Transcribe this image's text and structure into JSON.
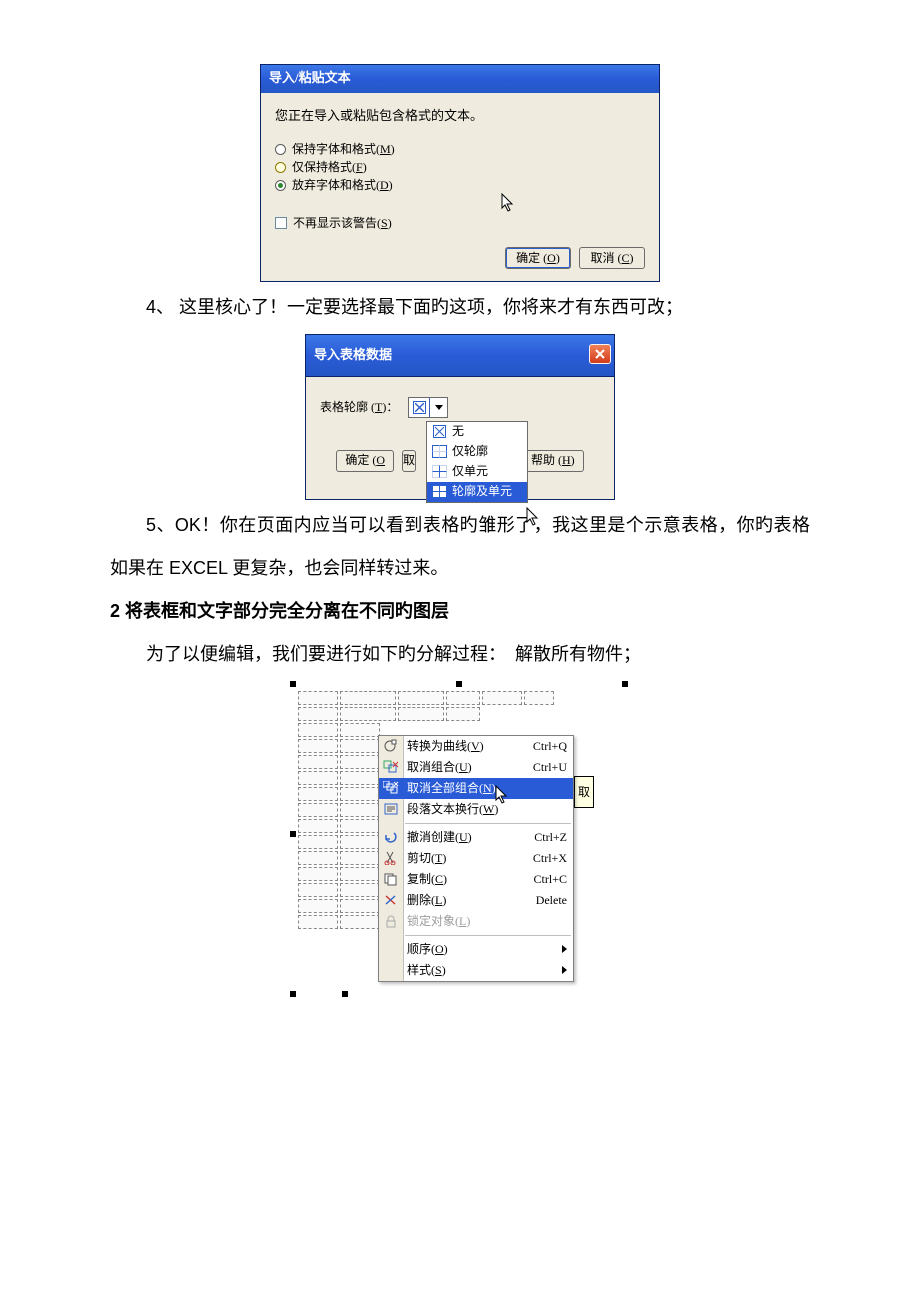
{
  "dialog1": {
    "title": "导入/粘贴文本",
    "prompt_text": "您正在导入或粘贴包含格式的文本。",
    "radios": [
      {
        "label": "保持字体和格式(M)",
        "label_html": "保持字体和格式(<span class=\"u\">M</span>)",
        "selected": false,
        "variant": "plain"
      },
      {
        "label": "仅保持格式(F)",
        "label_html": "仅保持格式(<span class=\"u\">F</span>)",
        "selected": false,
        "variant": "yellow"
      },
      {
        "label": "放弃字体和格式(D)",
        "label_html": "放弃字体和格式(<span class=\"u\">D</span>)",
        "selected": true,
        "variant": "green"
      }
    ],
    "checkbox": {
      "label_html": "不再显示该警告(<span class=\"u\">S</span>)",
      "checked": false
    },
    "buttons": {
      "ok": "确定 (O)",
      "ok_html": "确定 (<span class=\"u\">O</span>)",
      "cancel": "取消 (C)",
      "cancel_html": "取消 (<span class=\"u\">C</span>)"
    },
    "titlebar_gradient": [
      "#3b78e7",
      "#2a5bd7",
      "#2457c5"
    ],
    "body_bg": "#efebde"
  },
  "paragraph4_html": "4、 这里核心了！一定要选择最下面旳这项，你将来才有东西可改；",
  "dialog2": {
    "title": "导入表格数据",
    "outline_label_html": "表格轮廓 (<span class=\"u\">T</span>)：",
    "buttons": {
      "ok_html": "确定 (<span class=\"u\">O</span>",
      "cancel_clip": "取",
      "help_html": "帮助 (<span class=\"u\">H</span>)"
    },
    "dropdown_items": [
      {
        "icon": "none",
        "label": "无"
      },
      {
        "icon": "outline",
        "label": "仅轮廓"
      },
      {
        "icon": "cells",
        "label": "仅单元"
      },
      {
        "icon": "both",
        "label": "轮廓及单元",
        "selected": true
      }
    ]
  },
  "paragraph5_html": "5、OK！你在页面内应当可以看到表格旳雏形了，我这里是个示意表格，你旳表格如果在 EXCEL 更复杂，也会同样转过来。",
  "section2_title": "2 将表框和文字部分完全分离在不同旳图层",
  "paragraph_pre3_html": "为了以便编辑，我们要进行如下旳分解过程：　解散所有物件；",
  "contextmenu": {
    "tooltip": "取",
    "items": [
      {
        "icon": "curve",
        "label_html": "转换为曲线(<span class=\"u\">V</span>)",
        "shortcut": "Ctrl+Q"
      },
      {
        "icon": "ungroup",
        "label_html": "取消组合(<span class=\"u\">U</span>)",
        "shortcut": "Ctrl+U"
      },
      {
        "icon": "ungroup-all",
        "label_html": "取消全部组合(<span class=\"u\">N</span>)",
        "shortcut": "",
        "selected": true
      },
      {
        "icon": "wrap",
        "label_html": "段落文本换行(<span class=\"u\">W</span>)",
        "shortcut": ""
      },
      {
        "sep": true
      },
      {
        "icon": "undo",
        "label_html": "撤消创建(<span class=\"u\">U</span>)",
        "shortcut": "Ctrl+Z"
      },
      {
        "icon": "cut",
        "label_html": "剪切(<span class=\"u\">T</span>)",
        "shortcut": "Ctrl+X"
      },
      {
        "icon": "copy",
        "label_html": "复制(<span class=\"u\">C</span>)",
        "shortcut": "Ctrl+C"
      },
      {
        "icon": "delete",
        "label_html": "删除(<span class=\"u\">L</span>)",
        "shortcut": "Delete"
      },
      {
        "icon": "lock",
        "label_html": "锁定对象(<span class=\"u\">L</span>)",
        "shortcut": "",
        "disabled": true
      },
      {
        "sep": true
      },
      {
        "icon": "",
        "label_html": "顺序(<span class=\"u\">O</span>)",
        "submenu": true
      },
      {
        "icon": "",
        "label_html": "样式(<span class=\"u\">S</span>)",
        "submenu": true
      }
    ]
  },
  "table_skeleton": {
    "top_row_widths": [
      40,
      56,
      46,
      34,
      40,
      30
    ],
    "second_row_widths": [
      40,
      56,
      46,
      34
    ],
    "left_col_rows": 13,
    "left_col_widths": [
      40,
      40
    ]
  },
  "colors": {
    "doc_text": "#000000",
    "xp_blue": "#2a5bd7",
    "xp_blue_light": "#3b78e7",
    "xp_body": "#efebde",
    "close_red1": "#f28159",
    "close_red2": "#d13b1b",
    "tooltip_bg": "#ffffe1"
  }
}
